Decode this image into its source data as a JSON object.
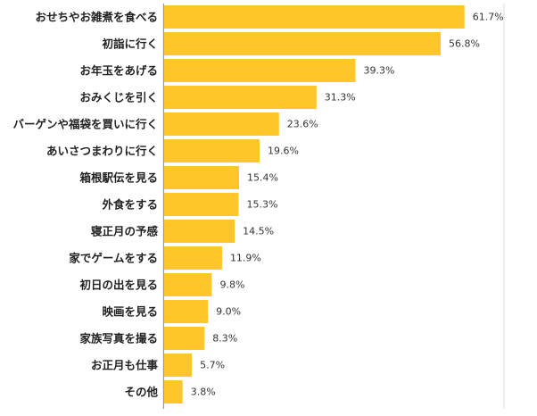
{
  "colors": {
    "bar": "#FFC629",
    "axis": "#999999",
    "gridline": "#DDDDDD"
  },
  "chart_data": {
    "type": "bar",
    "orientation": "horizontal",
    "title": "",
    "xlabel": "",
    "ylabel": "",
    "xlim": [
      0,
      70
    ],
    "grid": false,
    "legend": "none",
    "categories": [
      "おせちやお雑煮を食べる",
      "初詣に行く",
      "お年玉をあげる",
      "おみくじを引く",
      "バーゲンや福袋を買いに行く",
      "あいさつまわりに行く",
      "箱根駅伝を見る",
      "外食をする",
      "寝正月の予感",
      "家でゲームをする",
      "初日の出を見る",
      "映画を見る",
      "家族写真を撮る",
      "お正月も仕事",
      "その他"
    ],
    "values": [
      61.7,
      56.8,
      39.3,
      31.3,
      23.6,
      19.6,
      15.4,
      15.3,
      14.5,
      11.9,
      9.8,
      9.0,
      8.3,
      5.7,
      3.8
    ],
    "value_labels": [
      "61.7%",
      "56.8%",
      "39.3%",
      "31.3%",
      "23.6%",
      "19.6%",
      "15.4%",
      "15.3%",
      "14.5%",
      "11.9%",
      "9.8%",
      "9.0%",
      "8.3%",
      "5.7%",
      "3.8%"
    ]
  }
}
